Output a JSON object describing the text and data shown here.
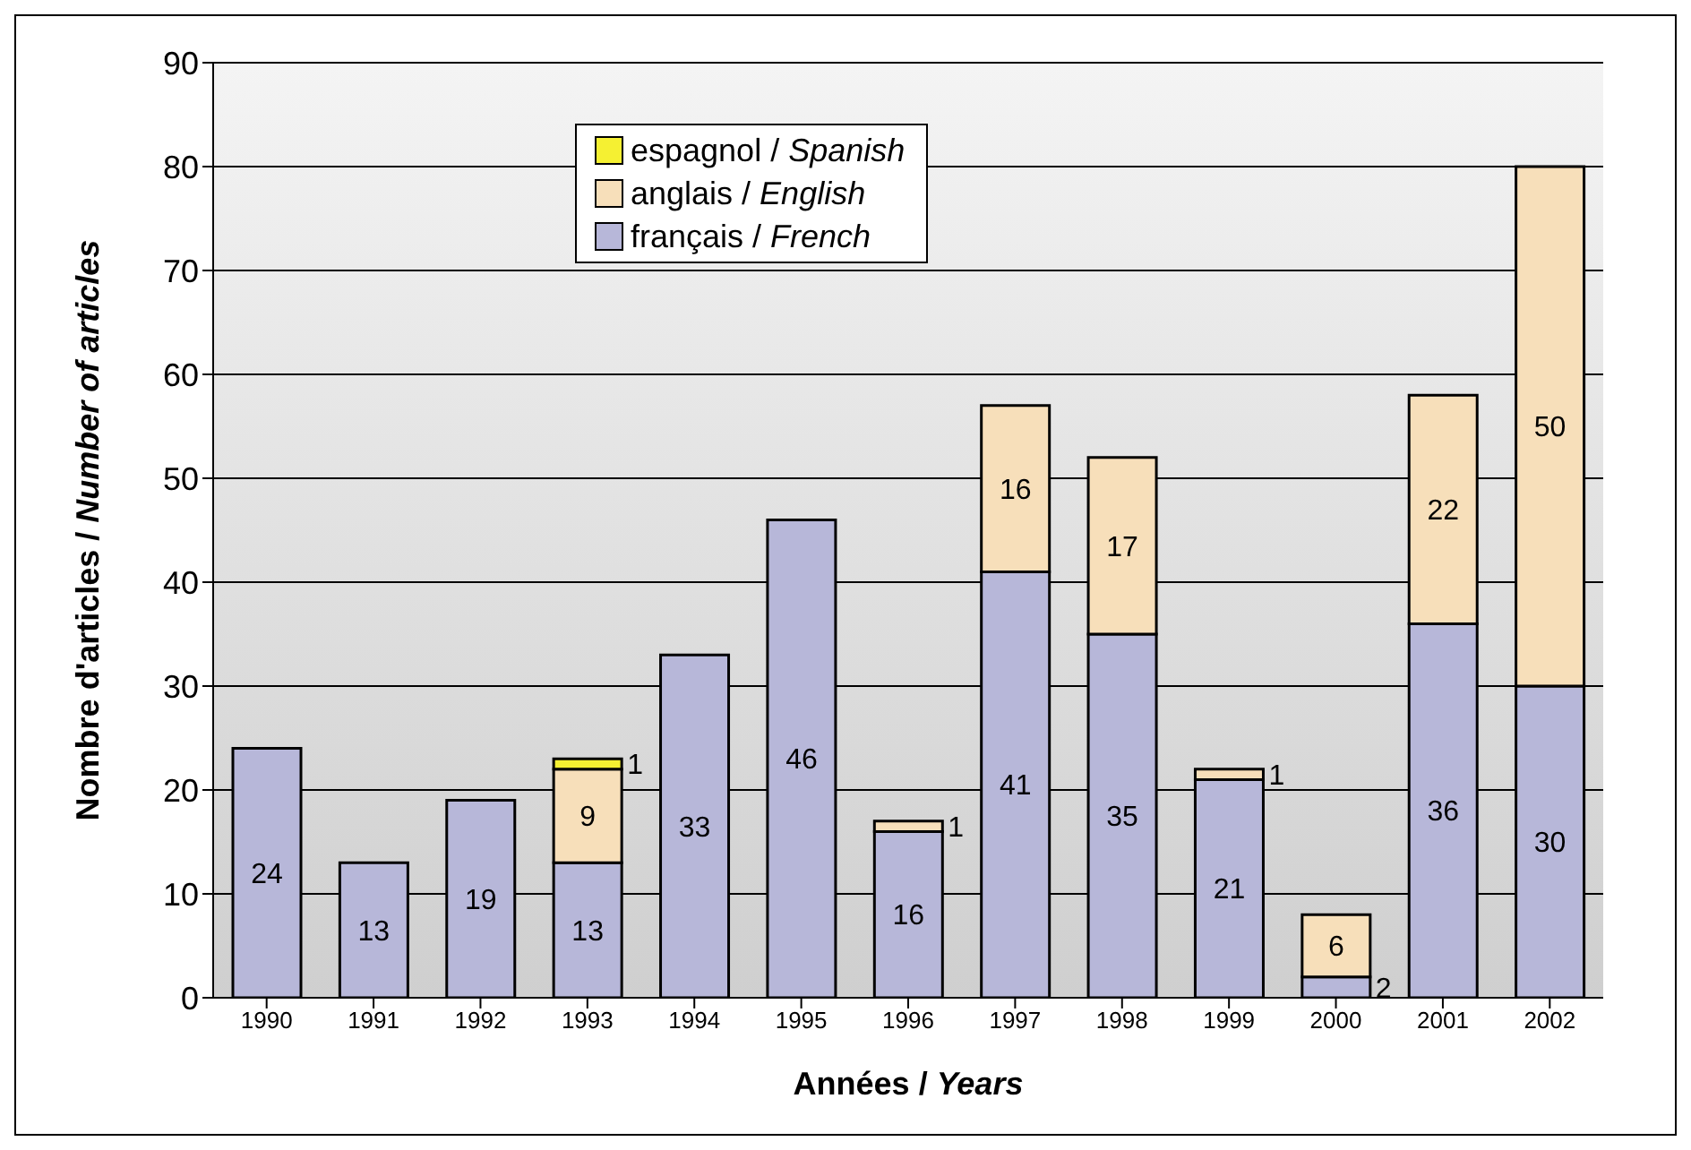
{
  "chart_data": {
    "type": "bar",
    "stacked": true,
    "xlabel": "Années / Years",
    "ylabel": "Nombre d'articles / Number of articles",
    "categories": [
      "1990",
      "1991",
      "1992",
      "1993",
      "1994",
      "1995",
      "1996",
      "1997",
      "1998",
      "1999",
      "2000",
      "2001",
      "2002"
    ],
    "series": [
      {
        "name": "français / French",
        "color": "#b7b7d9",
        "values": [
          24,
          13,
          19,
          13,
          33,
          46,
          16,
          41,
          35,
          21,
          2,
          36,
          30
        ]
      },
      {
        "name": "anglais / English",
        "color": "#f7dfba",
        "values": [
          null,
          null,
          null,
          9,
          null,
          null,
          1,
          16,
          17,
          1,
          6,
          22,
          50
        ]
      },
      {
        "name": "espagnol / Spanish",
        "color": "#f5f032",
        "values": [
          null,
          null,
          null,
          1,
          null,
          null,
          null,
          null,
          null,
          null,
          null,
          null,
          null
        ]
      }
    ],
    "ylim": [
      0,
      90
    ],
    "yticks": [
      0,
      10,
      20,
      30,
      40,
      50,
      60,
      70,
      80,
      90
    ],
    "grid": "y",
    "legend": "top",
    "data_labels": true
  }
}
